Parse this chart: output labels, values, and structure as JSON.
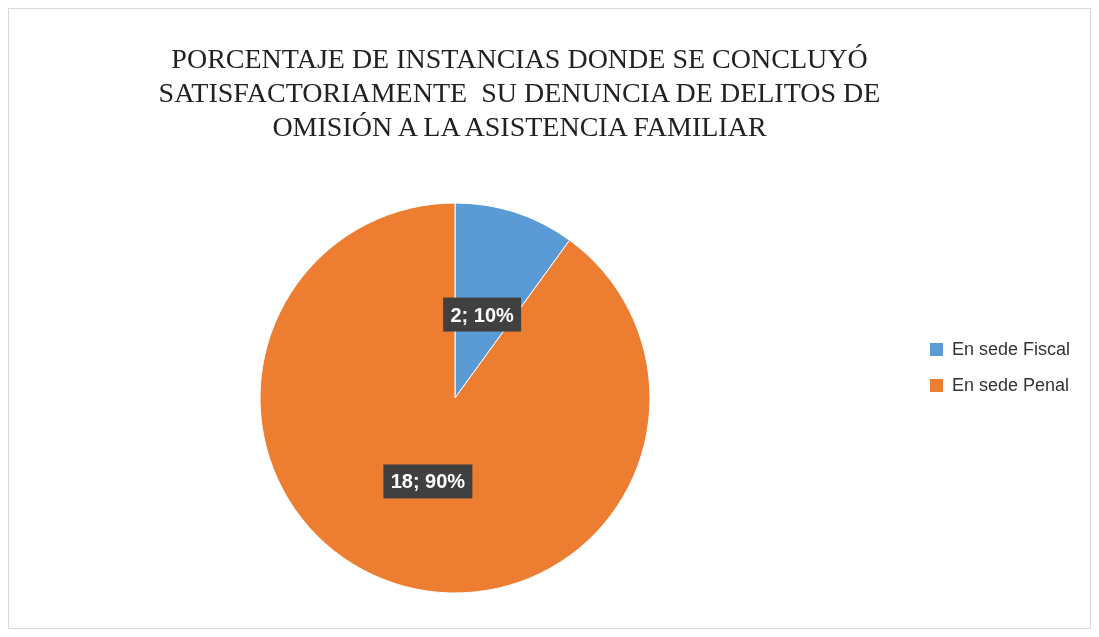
{
  "chart_data": {
    "type": "pie",
    "title": "PORCENTAJE DE INSTANCIAS DONDE SE CONCLUYÓ\nSATISFACTORIAMENTE  SU DENUNCIA DE DELITOS DE\nOMISIÓN A LA ASISTENCIA FAMILIAR",
    "categories": [
      "En sede Fiscal",
      "En sede Penal"
    ],
    "values": [
      2,
      18
    ],
    "colors": [
      "#5b9bd5",
      "#ed7d31"
    ],
    "value_labels": [
      "2; 10%",
      "18; 90%"
    ],
    "legend": "right"
  }
}
